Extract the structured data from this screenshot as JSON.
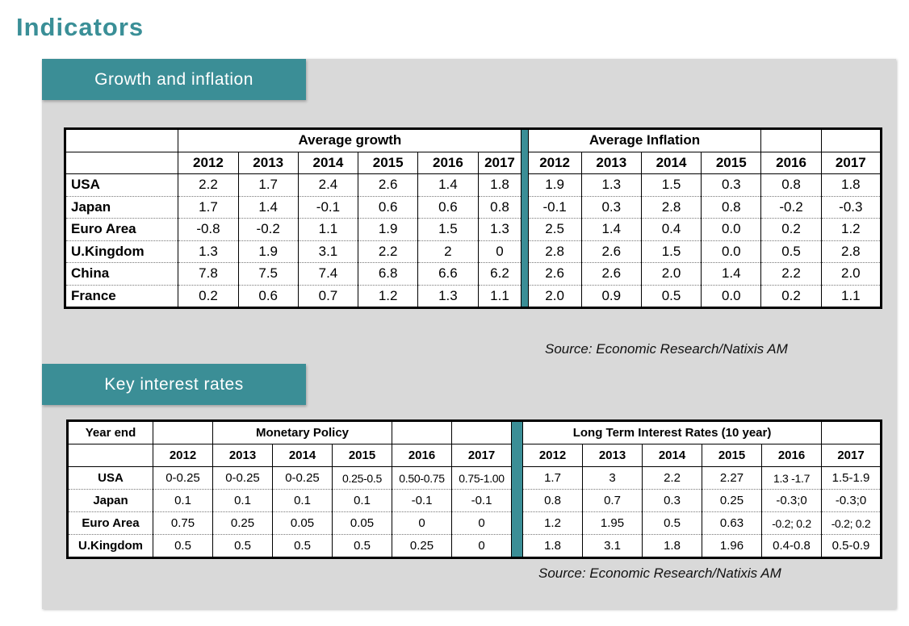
{
  "page": {
    "title": "Indicators"
  },
  "growth_inflation": {
    "tab_label": "Growth and inflation",
    "growth_header": "Average growth",
    "inflation_header": "Average Inflation",
    "years": [
      "2012",
      "2013",
      "2014",
      "2015",
      "2016",
      "2017"
    ],
    "rows": [
      {
        "country": "USA",
        "growth": [
          "2.2",
          "1.7",
          "2.4",
          "2.6",
          "1.4",
          "1.8"
        ],
        "inflation": [
          "1.9",
          "1.3",
          "1.5",
          "0.3",
          "0.8",
          "1.8"
        ]
      },
      {
        "country": "Japan",
        "growth": [
          "1.7",
          "1.4",
          "-0.1",
          "0.6",
          "0.6",
          "0.8"
        ],
        "inflation": [
          "-0.1",
          "0.3",
          "2.8",
          "0.8",
          "-0.2",
          "-0.3"
        ]
      },
      {
        "country": "Euro Area",
        "growth": [
          "-0.8",
          "-0.2",
          "1.1",
          "1.9",
          "1.5",
          "1.3"
        ],
        "inflation": [
          "2.5",
          "1.4",
          "0.4",
          "0.0",
          "0.2",
          "1.2"
        ]
      },
      {
        "country": "U.Kingdom",
        "growth": [
          "1.3",
          "1.9",
          "3.1",
          "2.2",
          "2",
          "0"
        ],
        "inflation": [
          "2.8",
          "2.6",
          "1.5",
          "0.0",
          "0.5",
          "2.8"
        ]
      },
      {
        "country": "China",
        "growth": [
          "7.8",
          "7.5",
          "7.4",
          "6.8",
          "6.6",
          "6.2"
        ],
        "inflation": [
          "2.6",
          "2.6",
          "2.0",
          "1.4",
          "2.2",
          "2.0"
        ]
      },
      {
        "country": "France",
        "growth": [
          "0.2",
          "0.6",
          "0.7",
          "1.2",
          "1.3",
          "1.1"
        ],
        "inflation": [
          "2.0",
          "0.9",
          "0.5",
          "0.0",
          "0.2",
          "1.1"
        ]
      }
    ],
    "source": "Source:  Economic Research/Natixis AM"
  },
  "interest_rates": {
    "tab_label": "Key interest rates",
    "year_end_label": "Year end",
    "monetary_header": "Monetary Policy",
    "long_term_header": "Long Term Interest Rates (10 year)",
    "years": [
      "2012",
      "2013",
      "2014",
      "2015",
      "2016",
      "2017"
    ],
    "rows": [
      {
        "country": "USA",
        "monetary": [
          "0-0.25",
          "0-0.25",
          "0-0.25",
          "0.25-0.5",
          "0.50-0.75",
          "0.75-1.00"
        ],
        "long_term": [
          "1.7",
          "3",
          "2.2",
          "2.27",
          "1.3 -1.7",
          "1.5-1.9"
        ]
      },
      {
        "country": "Japan",
        "monetary": [
          "0.1",
          "0.1",
          "0.1",
          "0.1",
          "-0.1",
          "-0.1"
        ],
        "long_term": [
          "0.8",
          "0.7",
          "0.3",
          "0.25",
          "-0.3;0",
          "-0.3;0"
        ]
      },
      {
        "country": "Euro Area",
        "monetary": [
          "0.75",
          "0.25",
          "0.05",
          "0.05",
          "0",
          "0"
        ],
        "long_term": [
          "1.2",
          "1.95",
          "0.5",
          "0.63",
          "-0.2; 0.2",
          "-0.2; 0.2"
        ]
      },
      {
        "country": "U.Kingdom",
        "monetary": [
          "0.5",
          "0.5",
          "0.5",
          "0.5",
          "0.25",
          "0"
        ],
        "long_term": [
          "1.8",
          "3.1",
          "1.8",
          "1.96",
          "0.4-0.8",
          "0.5-0.9"
        ]
      }
    ],
    "source": "Source:  Economic Research/Natixis AM"
  }
}
